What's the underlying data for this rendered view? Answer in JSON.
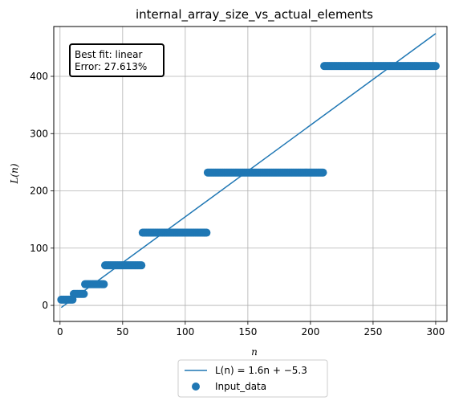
{
  "chart_data": {
    "type": "scatter",
    "title": "internal_array_size_vs_actual_elements",
    "xlabel": "n",
    "ylabel": "L(n)",
    "xlim": [
      -5,
      309
    ],
    "ylim": [
      -28,
      487
    ],
    "xticks": [
      0,
      50,
      100,
      150,
      200,
      250,
      300
    ],
    "yticks": [
      0,
      100,
      200,
      300,
      400
    ],
    "grid": true,
    "annotation": {
      "line1": "Best fit: linear",
      "line2": "Error: 27.613%"
    },
    "legend": {
      "position": "below",
      "fit_label": "L(n) = 1.6n + −5.3",
      "data_label": "Input_data"
    },
    "fit_line": {
      "slope": 1.6,
      "intercept": -5.3,
      "x_range": [
        1,
        300
      ]
    },
    "color": "#1f77b4",
    "series": [
      {
        "name": "Input_data",
        "steps": [
          {
            "x_start": 1,
            "x_end": 10,
            "y": 10
          },
          {
            "x_start": 11,
            "x_end": 19,
            "y": 20
          },
          {
            "x_start": 20,
            "x_end": 35,
            "y": 37
          },
          {
            "x_start": 36,
            "x_end": 65,
            "y": 70
          },
          {
            "x_start": 66,
            "x_end": 117,
            "y": 127
          },
          {
            "x_start": 118,
            "x_end": 210,
            "y": 232
          },
          {
            "x_start": 211,
            "x_end": 300,
            "y": 418
          }
        ]
      }
    ]
  }
}
